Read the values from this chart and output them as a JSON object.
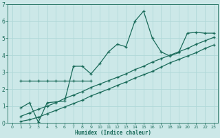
{
  "xlabel": "Humidex (Indice chaleur)",
  "bg_color": "#cce8e8",
  "line_color": "#1a6b5a",
  "grid_color": "#b0d8d8",
  "xlim": [
    -0.5,
    23.5
  ],
  "ylim": [
    0,
    7
  ],
  "xticks": [
    0,
    1,
    2,
    3,
    4,
    5,
    6,
    7,
    8,
    9,
    10,
    11,
    12,
    13,
    14,
    15,
    16,
    17,
    18,
    19,
    20,
    21,
    22,
    23
  ],
  "yticks": [
    0,
    1,
    2,
    3,
    4,
    5,
    6,
    7
  ],
  "line1_x": [
    1,
    2,
    3,
    4,
    5,
    6,
    7,
    8,
    9,
    10,
    11,
    12,
    13,
    14,
    15,
    16,
    17,
    18,
    19,
    20,
    21,
    22,
    23
  ],
  "line1_y": [
    0.9,
    1.2,
    0.05,
    1.2,
    1.25,
    1.3,
    3.35,
    3.35,
    2.9,
    3.5,
    4.2,
    4.65,
    4.5,
    6.0,
    6.6,
    5.0,
    4.2,
    3.95,
    4.15,
    5.3,
    5.35,
    5.3,
    5.3
  ],
  "line2_x": [
    1,
    2,
    3,
    4,
    5,
    6,
    7,
    8,
    9,
    10,
    11,
    12,
    13,
    14,
    15,
    16,
    17,
    18,
    19,
    20,
    21,
    22,
    23
  ],
  "line2_y": [
    0.4,
    0.6,
    0.82,
    1.0,
    1.2,
    1.45,
    1.65,
    1.85,
    2.1,
    2.3,
    2.5,
    2.7,
    2.9,
    3.15,
    3.35,
    3.6,
    3.8,
    4.0,
    4.2,
    4.4,
    4.65,
    4.85,
    5.05
  ],
  "line3_x": [
    1,
    2,
    3,
    4,
    5,
    6,
    7,
    8,
    9,
    10,
    11,
    12,
    13,
    14,
    15,
    16,
    17,
    18,
    19,
    20,
    21,
    22,
    23
  ],
  "line3_y": [
    0.1,
    0.2,
    0.35,
    0.55,
    0.75,
    0.95,
    1.15,
    1.35,
    1.6,
    1.8,
    2.0,
    2.22,
    2.42,
    2.65,
    2.85,
    3.05,
    3.3,
    3.55,
    3.75,
    3.95,
    4.15,
    4.4,
    4.6
  ],
  "line4_x": [
    1,
    2,
    3,
    4,
    5,
    6,
    7,
    8,
    9
  ],
  "line4_y": [
    2.5,
    2.5,
    2.5,
    2.5,
    2.5,
    2.5,
    2.5,
    2.5,
    2.5
  ]
}
